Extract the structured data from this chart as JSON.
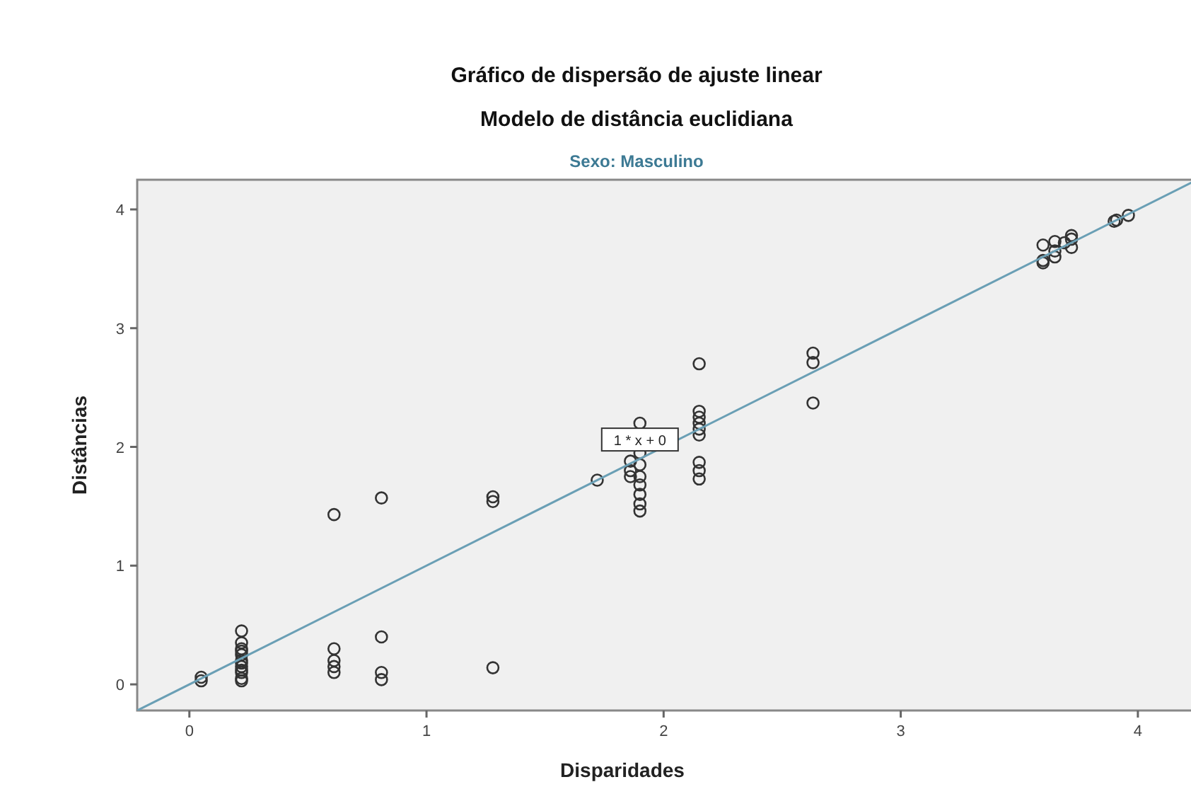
{
  "chart_data": {
    "type": "scatter",
    "title": "Gráfico de dispersão de ajuste linear",
    "subtitle": "Modelo de distância euclidiana",
    "annotations": [
      "Sexo: Masculino",
      {
        "text": "1 * x + 0",
        "x": 1.9,
        "y": 2.05
      }
    ],
    "xlabel": "Disparidades",
    "ylabel": "Distâncias",
    "xlim": [
      -0.22,
      4.23
    ],
    "ylim": [
      -0.22,
      4.25
    ],
    "xticks": [
      0,
      1,
      2,
      3,
      4
    ],
    "yticks": [
      0,
      1,
      2,
      3,
      4
    ],
    "grid": false,
    "marker": "circle",
    "series": [
      {
        "color": "#333333",
        "x": [
          0.05,
          0.05,
          0.22,
          0.22,
          0.22,
          0.22,
          0.22,
          0.22,
          0.22,
          0.22,
          0.22,
          0.22,
          0.22,
          0.22,
          0.61,
          0.61,
          0.61,
          0.61,
          0.61,
          0.81,
          0.81,
          0.81,
          0.81,
          1.28,
          1.28,
          1.28,
          1.72,
          1.86,
          1.86,
          1.86,
          1.9,
          1.9,
          1.9,
          1.9,
          1.9,
          1.9,
          1.9,
          1.9,
          2.15,
          2.15,
          2.15,
          2.15,
          2.15,
          2.15,
          2.15,
          2.15,
          2.15,
          2.63,
          2.63,
          2.63,
          3.6,
          3.6,
          3.6,
          3.65,
          3.65,
          3.65,
          3.69,
          3.72,
          3.72,
          3.72,
          3.9,
          3.91,
          3.96
        ],
        "values": [
          0.03,
          0.06,
          0.45,
          0.35,
          0.3,
          0.25,
          0.2,
          0.15,
          0.1,
          0.05,
          0.03,
          0.28,
          0.18,
          0.12,
          1.43,
          0.3,
          0.2,
          0.15,
          0.1,
          1.57,
          0.4,
          0.1,
          0.04,
          1.58,
          1.54,
          0.14,
          1.72,
          1.75,
          1.8,
          1.88,
          2.2,
          1.95,
          1.85,
          1.75,
          1.68,
          1.6,
          1.52,
          1.46,
          2.7,
          2.3,
          2.25,
          2.2,
          2.15,
          2.1,
          1.87,
          1.8,
          1.73,
          2.79,
          2.71,
          2.37,
          3.7,
          3.55,
          3.57,
          3.73,
          3.65,
          3.6,
          3.72,
          3.78,
          3.75,
          3.68,
          3.9,
          3.91,
          3.95
        ]
      },
      {
        "type": "line",
        "color": "#6a9fb5",
        "x": [
          -0.22,
          4.23
        ],
        "values": [
          -0.22,
          4.23
        ],
        "line_style": "solid",
        "marker": "none"
      }
    ]
  }
}
